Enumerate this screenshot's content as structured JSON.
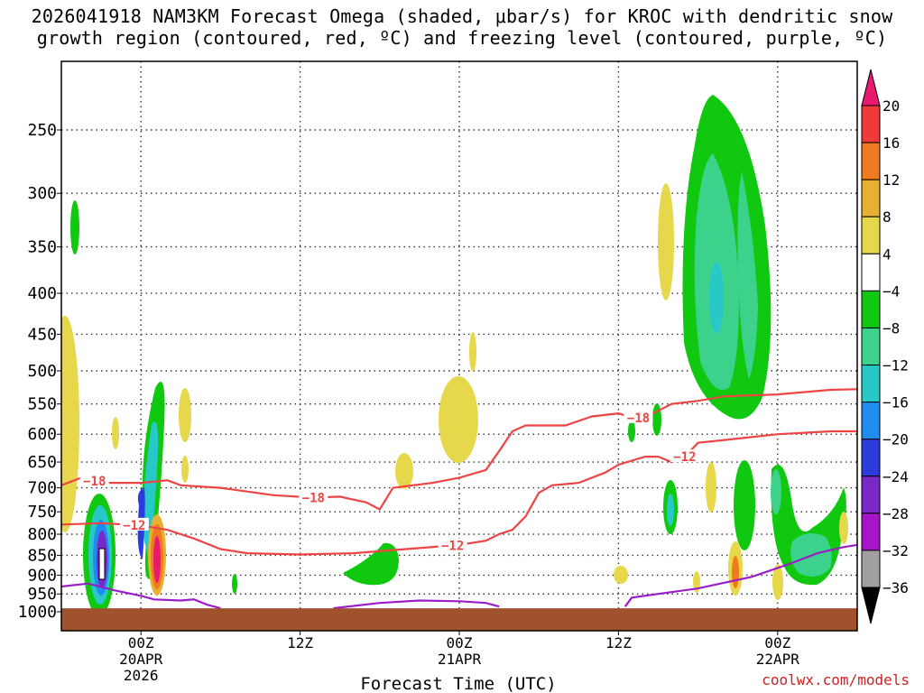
{
  "title_line1": "2026041918 NAM3KM Forecast Omega (shaded, μbar/s) for KROC with dendritic snow",
  "title_line2": "growth region (contoured, red, ºC) and freezing level (contoured, purple, ºC)",
  "watermark": "coolwx.com/models",
  "chart_data": {
    "type": "time-height cross section",
    "xlabel": "Forecast Time (UTC)",
    "ylabel": "Pressure (mb)",
    "x_range_hours_from_init": [
      0,
      60
    ],
    "x_ticks": [
      {
        "hour": 6,
        "lines": [
          "00Z",
          "20APR",
          "2026"
        ]
      },
      {
        "hour": 18,
        "lines": [
          "12Z"
        ]
      },
      {
        "hour": 30,
        "lines": [
          "00Z",
          "21APR"
        ]
      },
      {
        "hour": 42,
        "lines": [
          "12Z"
        ]
      },
      {
        "hour": 54,
        "lines": [
          "00Z",
          "22APR"
        ]
      }
    ],
    "y_range_mb": [
      200,
      1030
    ],
    "y_ticks": [
      250,
      300,
      350,
      400,
      450,
      500,
      550,
      600,
      650,
      700,
      750,
      800,
      850,
      900,
      950,
      1000
    ],
    "colorbar": {
      "labels": [
        "20",
        "16",
        "12",
        "8",
        "4",
        "−4",
        "−8",
        "−12",
        "−16",
        "−20",
        "−24",
        "−28",
        "−32",
        "−36"
      ],
      "colors": [
        "#e8196e",
        "#f03a3a",
        "#f07a20",
        "#e8b030",
        "#e6d84a",
        "#ffffff",
        "#11c811",
        "#3cd28c",
        "#28c8c8",
        "#1e8cf0",
        "#2a3cdc",
        "#7a28c8",
        "#a814c8",
        "#a0a0a0",
        "#000000"
      ]
    },
    "contours": [
      {
        "name": "-18C",
        "label": "−18",
        "color": "#ee4444",
        "label_hours": [
          2.5,
          19,
          43.5
        ],
        "points": [
          [
            0,
            695
          ],
          [
            1.5,
            680
          ],
          [
            3,
            690
          ],
          [
            6,
            690
          ],
          [
            8,
            685
          ],
          [
            9,
            695
          ],
          [
            12,
            700
          ],
          [
            16,
            715
          ],
          [
            19,
            720
          ],
          [
            21,
            718
          ],
          [
            23,
            730
          ],
          [
            24,
            745
          ],
          [
            25,
            700
          ],
          [
            28,
            690
          ],
          [
            30,
            680
          ],
          [
            32,
            665
          ],
          [
            33,
            630
          ],
          [
            34,
            595
          ],
          [
            35,
            585
          ],
          [
            38,
            585
          ],
          [
            40,
            570
          ],
          [
            42,
            565
          ],
          [
            43,
            572
          ],
          [
            44,
            572
          ],
          [
            46,
            550
          ],
          [
            48,
            545
          ],
          [
            50,
            538
          ],
          [
            54,
            535
          ],
          [
            58,
            528
          ],
          [
            60,
            527
          ]
        ]
      },
      {
        "name": "-12C",
        "label": "−12",
        "color": "#ee4444",
        "label_hours": [
          5.5,
          29.5,
          47
        ]
      },
      {
        "name": "-12C upper",
        "color": "#ee4444",
        "points": [
          [
            0,
            778
          ],
          [
            3,
            775
          ],
          [
            6,
            780
          ],
          [
            8,
            790
          ],
          [
            10,
            810
          ],
          [
            12,
            835
          ],
          [
            14,
            845
          ],
          [
            18,
            848
          ],
          [
            22,
            845
          ],
          [
            26,
            835
          ],
          [
            30,
            825
          ],
          [
            32,
            815
          ],
          [
            33,
            800
          ],
          [
            34,
            790
          ],
          [
            35,
            760
          ],
          [
            36,
            710
          ],
          [
            37,
            695
          ],
          [
            39,
            690
          ],
          [
            41,
            670
          ],
          [
            42,
            655
          ],
          [
            44,
            640
          ],
          [
            45,
            640
          ],
          [
            46,
            650
          ],
          [
            47,
            640
          ],
          [
            48,
            615
          ],
          [
            50,
            610
          ],
          [
            54,
            600
          ],
          [
            58,
            595
          ],
          [
            60,
            595
          ]
        ]
      },
      {
        "name": "0C",
        "color": "#9a1ec8",
        "points": [
          [
            0,
            930
          ],
          [
            2,
            922
          ],
          [
            4,
            940
          ],
          [
            6,
            955
          ],
          [
            7,
            965
          ],
          [
            9,
            968
          ],
          [
            10,
            965
          ],
          [
            11,
            980
          ],
          [
            12,
            990
          ]
        ]
      },
      {
        "name": "0C 21APR",
        "color": "#9a1ec8",
        "points": [
          [
            20.5,
            990
          ],
          [
            24,
            975
          ],
          [
            27,
            968
          ],
          [
            30,
            970
          ],
          [
            32,
            975
          ],
          [
            33,
            985
          ]
        ]
      },
      {
        "name": "0C 22APR",
        "color": "#9a1ec8",
        "points": [
          [
            42.5,
            985
          ],
          [
            43,
            960
          ],
          [
            45,
            950
          ],
          [
            48,
            935
          ],
          [
            52,
            905
          ],
          [
            55,
            870
          ],
          [
            57,
            845
          ],
          [
            59,
            830
          ],
          [
            60,
            825
          ]
        ]
      }
    ],
    "terrain": {
      "color": "#a0522d",
      "surface_mb": 990
    }
  }
}
